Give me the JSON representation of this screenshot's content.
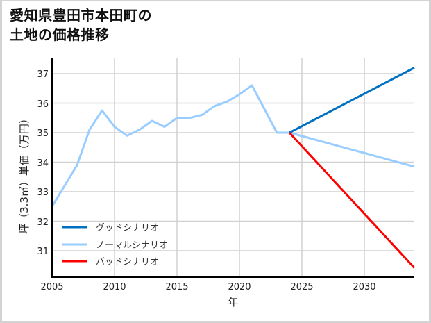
{
  "title": {
    "line1": "愛知県豊田市本田町の",
    "line2": "土地の価格推移"
  },
  "chart_data": {
    "type": "line",
    "title": "愛知県豊田市本田町の土地の価格推移",
    "xlabel": "年",
    "ylabel": "坪（3.3㎡）単価（万円）",
    "xlim": [
      2005,
      2034
    ],
    "ylim": [
      30.15,
      37.55
    ],
    "xticks": [
      2005,
      2010,
      2015,
      2020,
      2025,
      2030
    ],
    "yticks": [
      31,
      32,
      33,
      34,
      35,
      36,
      37
    ],
    "grid": true,
    "legend_position": "lower left",
    "series": [
      {
        "name": "ノーマルシナリオ",
        "color": "#99ccff",
        "x": [
          2005,
          2006,
          2007,
          2008,
          2009,
          2010,
          2011,
          2012,
          2013,
          2014,
          2015,
          2016,
          2017,
          2018,
          2019,
          2020,
          2021,
          2022,
          2023,
          2024,
          2034
        ],
        "y": [
          32.5,
          33.2,
          33.9,
          35.1,
          35.75,
          35.2,
          34.9,
          35.1,
          35.4,
          35.2,
          35.5,
          35.5,
          35.6,
          35.9,
          36.05,
          36.3,
          36.6,
          35.8,
          35.0,
          35.0,
          33.85
        ]
      },
      {
        "name": "グッドシナリオ",
        "color": "#0070c0",
        "x": [
          2024,
          2034
        ],
        "y": [
          35.0,
          37.2
        ]
      },
      {
        "name": "バッドシナリオ",
        "color": "#ff0000",
        "x": [
          2024,
          2034
        ],
        "y": [
          35.0,
          30.42
        ]
      }
    ]
  },
  "legend": {
    "items": [
      {
        "label": "グッドシナリオ",
        "color": "#0070c0"
      },
      {
        "label": "ノーマルシナリオ",
        "color": "#99ccff"
      },
      {
        "label": "バッドシナリオ",
        "color": "#ff0000"
      }
    ]
  },
  "axes": {
    "x_ticks": [
      "2005",
      "2010",
      "2015",
      "2020",
      "2025",
      "2030"
    ],
    "y_ticks": [
      "37",
      "36",
      "35",
      "34",
      "33",
      "32",
      "31"
    ],
    "xlabel": "年",
    "ylabel": "坪（3.3㎡）単価（万円）"
  }
}
